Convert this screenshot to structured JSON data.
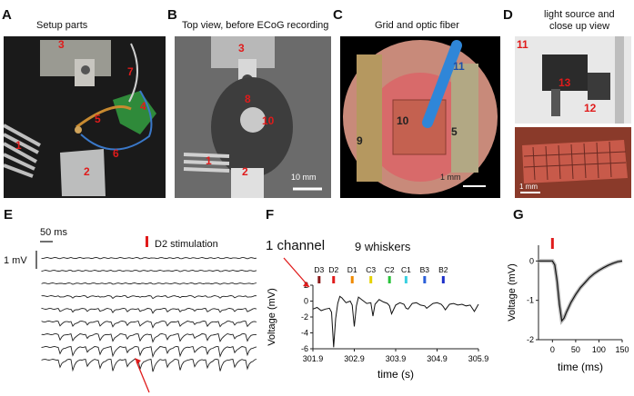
{
  "panels": {
    "A": {
      "letter": "A",
      "caption": "Setup parts",
      "labels": [
        "1",
        "2",
        "3",
        "4",
        "5",
        "6",
        "7"
      ]
    },
    "B": {
      "letter": "B",
      "caption": "Top view, before ECoG recording",
      "labels": [
        "3",
        "8",
        "10",
        "1",
        "2"
      ],
      "scale": "10 mm"
    },
    "C": {
      "letter": "C",
      "caption": "Grid and optic fiber",
      "labels": [
        "11",
        "10",
        "9",
        "5"
      ],
      "scale": "1 mm"
    },
    "D": {
      "letter": "D",
      "caption_line1": "light source and",
      "caption_line2": "close up view",
      "labels": [
        "11",
        "13",
        "12"
      ],
      "scale": "1 mm"
    },
    "E": {
      "letter": "E",
      "time_scale": "50 ms",
      "volt_scale": "1 mV",
      "legend": "D2 stimulation"
    },
    "F": {
      "letter": "F",
      "title_left": "1 channel",
      "title_right": "9 whiskers",
      "ylabel": "Voltage (mV)",
      "xlabel": "time (s)"
    },
    "G": {
      "letter": "G",
      "ylabel": "Voltage (mV)",
      "xlabel": "time (ms)"
    }
  },
  "colors": {
    "accent": "#e01b1b",
    "fiber": "#2f86d8"
  },
  "chart_data": [
    {
      "type": "line",
      "panel": "F",
      "xlim": [
        301.9,
        305.9
      ],
      "ylim": [
        -6,
        2
      ],
      "xticks": [
        "301.9",
        "302.9",
        "303.9",
        "304.9",
        "305.9"
      ],
      "yticks": [
        "-6",
        "-4",
        "-2",
        "0",
        "2"
      ],
      "stim_labels": [
        "D3",
        "D2",
        "D1",
        "C3",
        "C2",
        "C1",
        "B3",
        "B2"
      ],
      "stim_times": [
        302.05,
        302.4,
        302.85,
        303.3,
        303.75,
        304.15,
        304.6,
        305.05
      ],
      "stim_colors": [
        "#8b1a1a",
        "#e01b1b",
        "#f08a00",
        "#e6d200",
        "#29c23a",
        "#39d0e0",
        "#2a5fd8",
        "#1d2fc8"
      ],
      "series": [
        {
          "x": [
            301.9,
            302.0,
            302.1,
            302.2,
            302.3,
            302.35,
            302.4,
            302.45,
            302.5,
            302.55,
            302.6,
            302.7,
            302.8,
            302.85,
            302.9,
            302.95,
            303.0,
            303.1,
            303.2,
            303.3,
            303.35,
            303.4,
            303.5,
            303.6,
            303.7,
            303.75,
            303.8,
            303.9,
            304.0,
            304.1,
            304.15,
            304.2,
            304.3,
            304.4,
            304.5,
            304.6,
            304.65,
            304.7,
            304.8,
            304.9,
            305.0,
            305.05,
            305.1,
            305.2,
            305.3,
            305.4,
            305.5,
            305.6,
            305.7,
            305.8,
            305.9
          ],
          "y": [
            -1.0,
            -0.8,
            -1.2,
            -1.0,
            -0.9,
            -1.4,
            -5.8,
            -2.2,
            -0.3,
            0.6,
            0.4,
            -0.2,
            0.0,
            -0.5,
            -3.2,
            -0.6,
            0.5,
            0.1,
            -0.3,
            -0.2,
            -1.9,
            -0.4,
            0.2,
            -0.1,
            -0.3,
            -0.6,
            -1.6,
            -0.5,
            -0.2,
            -0.4,
            -0.9,
            -1.0,
            -0.3,
            -0.2,
            -0.5,
            -0.6,
            -0.9,
            -0.7,
            -0.3,
            -0.2,
            -0.4,
            -0.7,
            -1.1,
            -0.4,
            -0.3,
            -0.5,
            -0.4,
            -0.6,
            -0.5,
            -1.3,
            -0.4
          ]
        }
      ]
    },
    {
      "type": "line",
      "panel": "G",
      "xlim": [
        -30,
        150
      ],
      "ylim": [
        -2,
        0.4
      ],
      "xticks": [
        "0",
        "50",
        "100",
        "150"
      ],
      "yticks": [
        "0",
        "-1",
        "-2"
      ],
      "stim_time": 0,
      "series": [
        {
          "x": [
            -30,
            -20,
            -10,
            0,
            5,
            10,
            15,
            20,
            25,
            30,
            40,
            50,
            60,
            70,
            80,
            90,
            100,
            110,
            120,
            130,
            140,
            150
          ],
          "y": [
            0.0,
            0.0,
            0.0,
            0.0,
            -0.1,
            -0.5,
            -1.1,
            -1.52,
            -1.45,
            -1.3,
            -1.05,
            -0.85,
            -0.68,
            -0.55,
            -0.42,
            -0.32,
            -0.24,
            -0.17,
            -0.11,
            -0.06,
            -0.02,
            0.0
          ]
        }
      ]
    },
    {
      "type": "line",
      "panel": "E",
      "n_traces": 9,
      "stim_indices": [
        1,
        2,
        3,
        4,
        5,
        6,
        7,
        8,
        9,
        10,
        11,
        12,
        13,
        14,
        15
      ]
    }
  ]
}
